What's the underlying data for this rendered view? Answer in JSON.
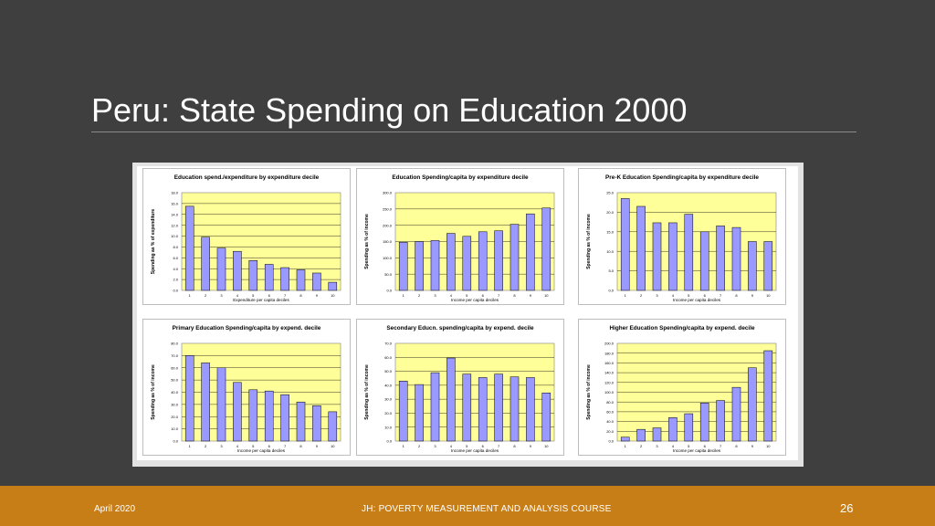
{
  "slide": {
    "title": "Peru: State Spending on Education 2000",
    "footer_date": "April 2020",
    "footer_course": "JH: POVERTY MEASUREMENT AND ANALYSIS COURSE",
    "page_number": "26"
  },
  "colors": {
    "bar": "#9999ff",
    "plot_bg": "#ffff99",
    "background": "#3f3f3f",
    "footer": "#c77e17"
  },
  "chart_data": [
    {
      "type": "bar",
      "title": "Education spend./expenditure by expenditure decile",
      "xlabel": "Expenditure per capita deciles",
      "ylabel": "Spending as % of expenditure",
      "categories": [
        "1",
        "2",
        "3",
        "4",
        "5",
        "6",
        "7",
        "8",
        "9",
        "10"
      ],
      "values": [
        15.5,
        9.8,
        7.8,
        7.2,
        5.5,
        4.8,
        4.2,
        3.8,
        3.2,
        1.5
      ],
      "ylim": [
        0,
        18
      ],
      "yticks": [
        "0.0",
        "2.0",
        "4.0",
        "6.0",
        "8.0",
        "10.0",
        "12.0",
        "14.0",
        "16.0",
        "18.0"
      ],
      "grid": true
    },
    {
      "type": "bar",
      "title": "Education Spending/capita by expenditure decile",
      "xlabel": "Income per capita deciles",
      "ylabel": "Spending as % of income",
      "categories": [
        "1",
        "2",
        "3",
        "4",
        "5",
        "6",
        "7",
        "8",
        "9",
        "10"
      ],
      "values": [
        148,
        150,
        153,
        175,
        166,
        180,
        183,
        203,
        235,
        253
      ],
      "ylim": [
        0,
        300
      ],
      "yticks": [
        "0.0",
        "50.0",
        "100.0",
        "150.0",
        "200.0",
        "250.0",
        "300.0"
      ],
      "grid": true
    },
    {
      "type": "bar",
      "title": "Pre-K Education Spending/capita by expenditure decile",
      "xlabel": "Income per capita deciles",
      "ylabel": "Spending as % of income",
      "categories": [
        "1",
        "2",
        "3",
        "4",
        "5",
        "6",
        "7",
        "8",
        "9",
        "10"
      ],
      "values": [
        23.5,
        21.5,
        17.3,
        17.3,
        19.5,
        15.0,
        16.5,
        16.1,
        12.5,
        12.5
      ],
      "ylim": [
        0,
        25
      ],
      "yticks": [
        "0.0",
        "5.0",
        "10.0",
        "15.0",
        "20.0",
        "25.0"
      ],
      "grid": true
    },
    {
      "type": "bar",
      "title": "Primary Education Spending/capita by expend. decile",
      "xlabel": "Income per capita deciles",
      "ylabel": "Spending as % of income",
      "categories": [
        "1",
        "2",
        "3",
        "4",
        "5",
        "6",
        "7",
        "8",
        "9",
        "10"
      ],
      "values": [
        70,
        64,
        60,
        48,
        42,
        41,
        38,
        32,
        29,
        24
      ],
      "ylim": [
        0,
        80
      ],
      "yticks": [
        "0.0",
        "10.0",
        "20.0",
        "30.0",
        "40.0",
        "50.0",
        "60.0",
        "70.0",
        "80.0"
      ],
      "grid": true
    },
    {
      "type": "bar",
      "title": "Secondary Educn. spending/capita by expend. decile",
      "xlabel": "Income per capita deciles",
      "ylabel": "Spending as % of income",
      "categories": [
        "1",
        "2",
        "3",
        "4",
        "5",
        "6",
        "7",
        "8",
        "9",
        "10"
      ],
      "values": [
        43,
        40.5,
        49,
        59.5,
        48,
        45.5,
        48,
        46,
        45.5,
        34.5
      ],
      "ylim": [
        0,
        70
      ],
      "yticks": [
        "0.0",
        "10.0",
        "20.0",
        "30.0",
        "40.0",
        "50.0",
        "60.0",
        "70.0"
      ],
      "grid": true
    },
    {
      "type": "bar",
      "title": "Higher Education Spending/capita by expend. decile",
      "xlabel": "Income per capita deciles",
      "ylabel": "Spending as % of income",
      "categories": [
        "1",
        "2",
        "3",
        "4",
        "5",
        "6",
        "7",
        "8",
        "9",
        "10"
      ],
      "values": [
        8,
        24,
        27,
        48,
        56,
        78,
        83,
        110,
        150,
        185
      ],
      "ylim": [
        0,
        200
      ],
      "yticks": [
        "0.0",
        "20.0",
        "40.0",
        "60.0",
        "80.0",
        "100.0",
        "120.0",
        "140.0",
        "160.0",
        "180.0",
        "200.0"
      ],
      "grid": true
    }
  ]
}
